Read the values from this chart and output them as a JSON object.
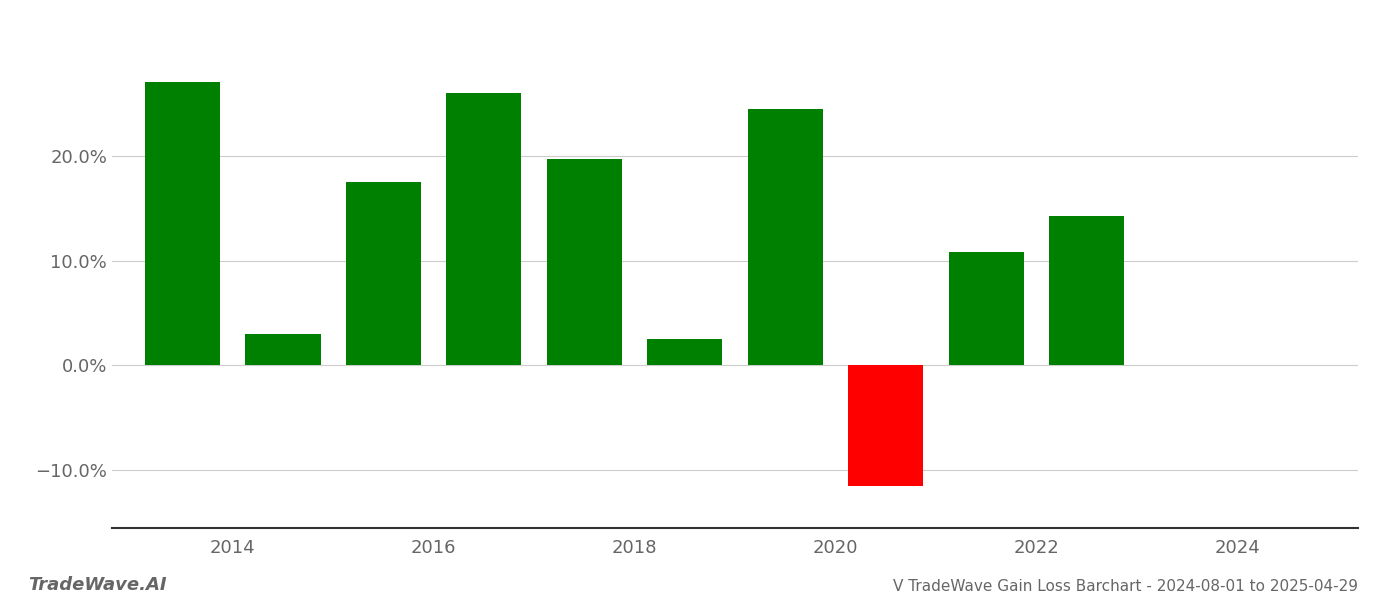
{
  "bar_positions": [
    2013.5,
    2014.5,
    2015.5,
    2016.5,
    2017.5,
    2018.5,
    2019.5,
    2020.5,
    2021.5,
    2022.5
  ],
  "values": [
    0.27,
    0.03,
    0.175,
    0.26,
    0.197,
    0.025,
    0.245,
    -0.115,
    0.108,
    0.143
  ],
  "bar_colors": [
    "#008000",
    "#008000",
    "#008000",
    "#008000",
    "#008000",
    "#008000",
    "#008000",
    "#ff0000",
    "#008000",
    "#008000"
  ],
  "title": "V TradeWave Gain Loss Barchart - 2024-08-01 to 2025-04-29",
  "watermark": "TradeWave.AI",
  "xlim": [
    2012.8,
    2025.2
  ],
  "ylim": [
    -0.155,
    0.32
  ],
  "xticks": [
    2014,
    2016,
    2018,
    2020,
    2022,
    2024
  ],
  "yticks": [
    -0.1,
    0.0,
    0.1,
    0.2
  ],
  "ytick_labels": [
    "−10.0%",
    "0.0%",
    "10.0%",
    "20.0%"
  ],
  "bar_width": 0.75,
  "grid_color": "#cccccc",
  "background_color": "#ffffff",
  "spine_color": "#333333",
  "text_color": "#666666",
  "title_fontsize": 11,
  "watermark_fontsize": 13,
  "tick_fontsize": 13
}
